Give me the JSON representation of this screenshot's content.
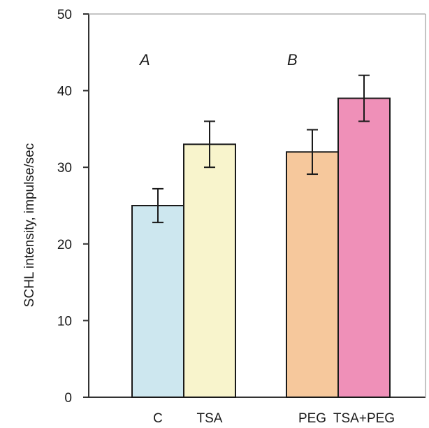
{
  "chart_data": {
    "type": "bar",
    "categories": [
      "C",
      "TSA",
      "PEG",
      "TSA+PEG"
    ],
    "values": [
      25,
      33,
      32,
      39
    ],
    "errors": [
      2.2,
      3,
      2.9,
      3
    ],
    "colors": [
      "#cde7ef",
      "#f8f4cc",
      "#f6c89c",
      "#ef90b8"
    ],
    "ylabel": "SCHL intensity, impulse/sec",
    "ylim": [
      0,
      50
    ],
    "yticks": [
      "0",
      "10",
      "20",
      "30",
      "40",
      "50"
    ],
    "panel_labels": [
      "A",
      "B"
    ],
    "grid": false
  }
}
